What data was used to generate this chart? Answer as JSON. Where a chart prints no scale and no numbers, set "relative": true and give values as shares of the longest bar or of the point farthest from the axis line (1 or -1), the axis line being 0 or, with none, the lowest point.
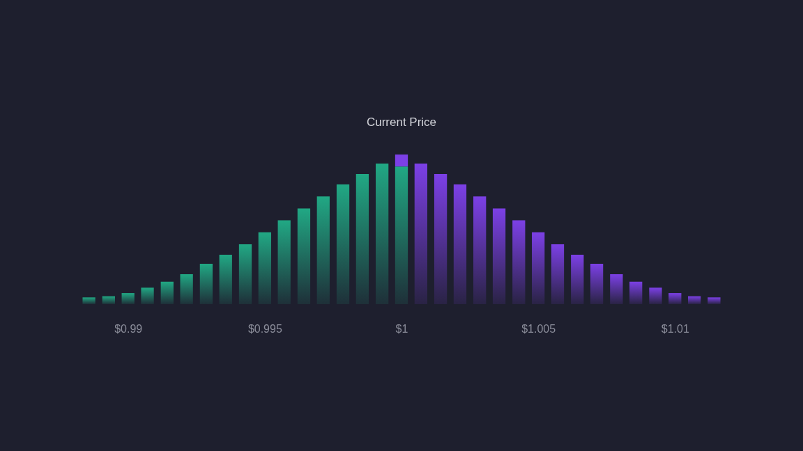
{
  "chart_data": {
    "type": "bar",
    "stacked": true,
    "relative": true,
    "x": [
      0.98857,
      0.98929,
      0.99,
      0.99071,
      0.99143,
      0.99214,
      0.99286,
      0.99357,
      0.99429,
      0.995,
      0.99571,
      0.99643,
      0.99714,
      0.99786,
      0.99857,
      0.99929,
      1,
      1.00071,
      1.00143,
      1.00214,
      1.00286,
      1.00357,
      1.00429,
      1.005,
      1.00571,
      1.00643,
      1.00714,
      1.00786,
      1.00857,
      1.00929,
      1.01,
      1.01071,
      1.01143
    ],
    "xlim": [
      0.9883,
      1.0117
    ],
    "xticks": [
      {
        "value": 0.99,
        "label": "$0.99"
      },
      {
        "value": 0.995,
        "label": "$0.995"
      },
      {
        "value": 1,
        "label": "$1"
      },
      {
        "value": 1.005,
        "label": "$1.005"
      },
      {
        "value": 1.01,
        "label": "$1.01"
      }
    ],
    "series": [
      {
        "color": "#21a884",
        "values": [
          0.045,
          0.053,
          0.074,
          0.11,
          0.15,
          0.2,
          0.27,
          0.33,
          0.4,
          0.48,
          0.56,
          0.64,
          0.72,
          0.8,
          0.87,
          0.94,
          0.92,
          null,
          null,
          null,
          null,
          null,
          null,
          null,
          null,
          null,
          null,
          null,
          null,
          null,
          null,
          null,
          null
        ]
      },
      {
        "color": "#7c40e6",
        "values": [
          null,
          null,
          null,
          null,
          null,
          null,
          null,
          null,
          null,
          null,
          null,
          null,
          null,
          null,
          null,
          null,
          0.08,
          0.94,
          0.87,
          0.8,
          0.72,
          0.64,
          0.56,
          0.48,
          0.4,
          0.33,
          0.27,
          0.2,
          0.15,
          0.11,
          0.074,
          0.053,
          0.045
        ]
      }
    ],
    "annotations": [
      "Current Price"
    ]
  }
}
